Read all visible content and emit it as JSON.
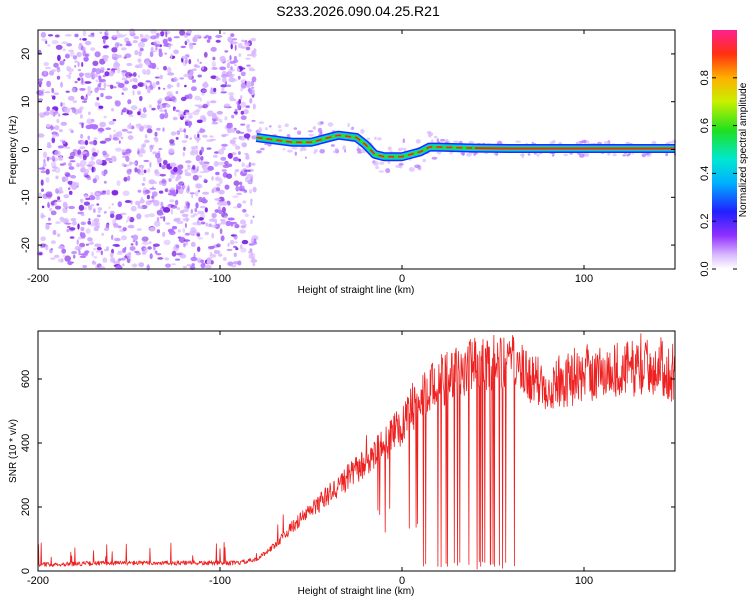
{
  "title": "S233.2026.090.04.25.R21",
  "colors": {
    "frame": "#000000",
    "snr_line": "#ee2020",
    "track_outer": "#1a2cff",
    "track_mid": "#00c8ff",
    "track_inner": "#28e028",
    "track_core": "#ff2020",
    "noise_light": "#d9b8ff",
    "noise_mid": "#b070ff",
    "noise_dark": "#7a1ee0"
  },
  "chart_data": [
    {
      "type": "heatmap",
      "id": "spectrogram",
      "xlabel": "Height of straight line (km)",
      "ylabel": "Frequency (Hz)",
      "xlim": [
        -200,
        150
      ],
      "ylim": [
        -25,
        25
      ],
      "x_ticks": [
        -200,
        -100,
        0,
        100
      ],
      "x_tick_labels": [
        "-200",
        "-100",
        "0",
        "100"
      ],
      "y_ticks": [
        -20,
        -10,
        0,
        10,
        20
      ],
      "y_tick_labels": [
        "-20",
        "-10",
        "0",
        "10",
        "20"
      ],
      "noise_region_x": [
        -200,
        -80
      ],
      "track": {
        "x": [
          -80,
          -70,
          -60,
          -50,
          -40,
          -35,
          -25,
          -20,
          -15,
          -10,
          -5,
          0,
          5,
          10,
          15,
          20,
          40,
          60,
          80,
          100,
          120,
          150
        ],
        "freq": [
          2.5,
          2.0,
          1.5,
          1.5,
          2.5,
          3.0,
          2.5,
          1.0,
          -1.0,
          -1.5,
          -1.5,
          -1.5,
          -1.0,
          -0.5,
          0.5,
          0.5,
          0.3,
          0.2,
          0.2,
          0.2,
          0.2,
          0.2
        ]
      },
      "colorbar": {
        "label": "Normalized spectral amplitude",
        "range": [
          0,
          1
        ],
        "ticks": [
          0.0,
          0.2,
          0.4,
          0.6,
          0.8
        ],
        "tick_labels": [
          "0.0",
          "0.2",
          "0.4",
          "0.6",
          "0.8"
        ]
      }
    },
    {
      "type": "line",
      "id": "snr",
      "xlabel": "Height of straight line (km)",
      "ylabel": "SNR (10 * v/v)",
      "xlim": [
        -200,
        150
      ],
      "ylim": [
        0,
        750
      ],
      "x_ticks": [
        -200,
        -100,
        0,
        100
      ],
      "x_tick_labels": [
        "-200",
        "-100",
        "0",
        "100"
      ],
      "y_ticks": [
        0,
        200,
        400,
        600
      ],
      "y_tick_labels": [
        "0",
        "200",
        "400",
        "600"
      ],
      "trend": {
        "x": [
          -200,
          -160,
          -120,
          -90,
          -80,
          -70,
          -60,
          -50,
          -40,
          -30,
          -20,
          -10,
          0,
          10,
          20,
          30,
          40,
          50,
          60,
          70,
          80,
          100,
          120,
          140,
          150
        ],
        "y": [
          20,
          25,
          25,
          25,
          35,
          80,
          140,
          190,
          240,
          290,
          340,
          390,
          460,
          530,
          590,
          620,
          640,
          650,
          650,
          600,
          580,
          610,
          630,
          640,
          610
        ]
      },
      "dropout_region_x": [
        10,
        65
      ]
    }
  ]
}
